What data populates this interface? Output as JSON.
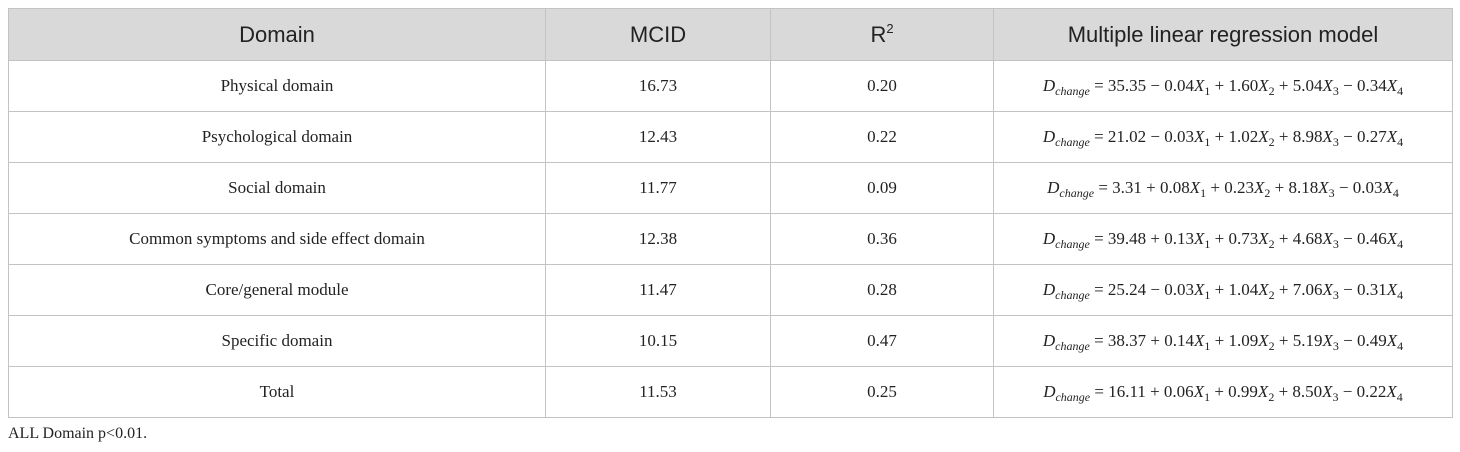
{
  "table": {
    "header": [
      "Domain",
      "MCID",
      {
        "base": "R",
        "sup": "2"
      },
      "Multiple linear regression model"
    ],
    "rows": [
      {
        "domain": "Physical domain",
        "mcid": "16.73",
        "r2": "0.20",
        "model": [
          [
            "i",
            "D"
          ],
          [
            "s",
            "change"
          ],
          [
            "n",
            " = 35.35 − 0.04"
          ],
          [
            "i",
            "X"
          ],
          [
            "sn",
            "1"
          ],
          [
            "n",
            " + 1.60"
          ],
          [
            "i",
            "X"
          ],
          [
            "sn",
            "2"
          ],
          [
            "n",
            " + 5.04"
          ],
          [
            "i",
            "X"
          ],
          [
            "sn",
            "3"
          ],
          [
            "n",
            " − 0.34"
          ],
          [
            "i",
            "X"
          ],
          [
            "sn",
            "4"
          ]
        ]
      },
      {
        "domain": "Psychological domain",
        "mcid": "12.43",
        "r2": "0.22",
        "model": [
          [
            "i",
            "D"
          ],
          [
            "s",
            "change"
          ],
          [
            "n",
            " = 21.02 − 0.03"
          ],
          [
            "i",
            "X"
          ],
          [
            "sn",
            "1"
          ],
          [
            "n",
            " + 1.02"
          ],
          [
            "i",
            "X"
          ],
          [
            "sn",
            "2"
          ],
          [
            "n",
            " + 8.98"
          ],
          [
            "i",
            "X"
          ],
          [
            "sn",
            "3"
          ],
          [
            "n",
            " − 0.27"
          ],
          [
            "i",
            "X"
          ],
          [
            "sn",
            "4"
          ]
        ]
      },
      {
        "domain": "Social domain",
        "mcid": "11.77",
        "r2": "0.09",
        "model": [
          [
            "i",
            "D"
          ],
          [
            "s",
            "change"
          ],
          [
            "n",
            " = 3.31 + 0.08"
          ],
          [
            "i",
            "X"
          ],
          [
            "sn",
            "1"
          ],
          [
            "n",
            " + 0.23"
          ],
          [
            "i",
            "X"
          ],
          [
            "sn",
            "2"
          ],
          [
            "n",
            " + 8.18"
          ],
          [
            "i",
            "X"
          ],
          [
            "sn",
            "3"
          ],
          [
            "n",
            " − 0.03"
          ],
          [
            "i",
            "X"
          ],
          [
            "sn",
            "4"
          ]
        ]
      },
      {
        "domain": "Common symptoms and side effect domain",
        "mcid": "12.38",
        "r2": "0.36",
        "model": [
          [
            "i",
            "D"
          ],
          [
            "s",
            "change"
          ],
          [
            "n",
            " = 39.48 + 0.13"
          ],
          [
            "i",
            "X"
          ],
          [
            "sn",
            "1"
          ],
          [
            "n",
            " + 0.73"
          ],
          [
            "i",
            "X"
          ],
          [
            "sn",
            "2"
          ],
          [
            "n",
            " + 4.68"
          ],
          [
            "i",
            "X"
          ],
          [
            "sn",
            "3"
          ],
          [
            "n",
            " − 0.46"
          ],
          [
            "i",
            "X"
          ],
          [
            "sn",
            "4"
          ]
        ]
      },
      {
        "domain": "Core/general module",
        "mcid": "11.47",
        "r2": "0.28",
        "model": [
          [
            "i",
            "D"
          ],
          [
            "s",
            "change"
          ],
          [
            "n",
            " = 25.24 − 0.03"
          ],
          [
            "i",
            "X"
          ],
          [
            "sn",
            "1"
          ],
          [
            "n",
            " + 1.04"
          ],
          [
            "i",
            "X"
          ],
          [
            "sn",
            "2"
          ],
          [
            "n",
            " + 7.06"
          ],
          [
            "i",
            "X"
          ],
          [
            "sn",
            "3"
          ],
          [
            "n",
            " − 0.31"
          ],
          [
            "i",
            "X"
          ],
          [
            "sn",
            "4"
          ]
        ]
      },
      {
        "domain": "Specific domain",
        "mcid": "10.15",
        "r2": "0.47",
        "model": [
          [
            "i",
            "D"
          ],
          [
            "s",
            "change"
          ],
          [
            "n",
            " = 38.37 + 0.14"
          ],
          [
            "i",
            "X"
          ],
          [
            "sn",
            "1"
          ],
          [
            "n",
            " + 1.09"
          ],
          [
            "i",
            "X"
          ],
          [
            "sn",
            "2"
          ],
          [
            "n",
            " + 5.19"
          ],
          [
            "i",
            "X"
          ],
          [
            "sn",
            "3"
          ],
          [
            "n",
            " − 0.49"
          ],
          [
            "i",
            "X"
          ],
          [
            "sn",
            "4"
          ]
        ]
      },
      {
        "domain": "Total",
        "mcid": "11.53",
        "r2": "0.25",
        "model": [
          [
            "i",
            "D"
          ],
          [
            "s",
            "change"
          ],
          [
            "n",
            " = 16.11 + 0.06"
          ],
          [
            "i",
            "X"
          ],
          [
            "sn",
            "1"
          ],
          [
            "n",
            " + 0.99"
          ],
          [
            "i",
            "X"
          ],
          [
            "sn",
            "2"
          ],
          [
            "n",
            " + 8.50"
          ],
          [
            "i",
            "X"
          ],
          [
            "sn",
            "3"
          ],
          [
            "n",
            " − 0.22"
          ],
          [
            "i",
            "X"
          ],
          [
            "sn",
            "4"
          ]
        ]
      }
    ],
    "note": "ALL Domain p<0.01."
  }
}
